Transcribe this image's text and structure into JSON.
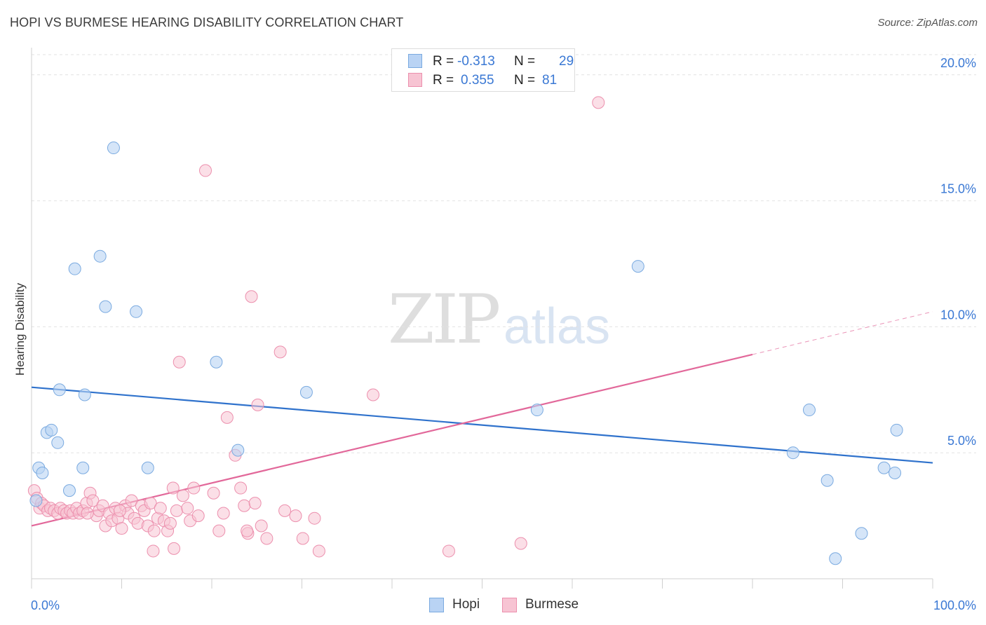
{
  "header": {
    "title": "HOPI VS BURMESE HEARING DISABILITY CORRELATION CHART",
    "source": "Source: ZipAtlas.com"
  },
  "legend": {
    "hopi": {
      "r_label": "R = ",
      "r_value": "-0.313",
      "n_label": "N = ",
      "n_value": "29"
    },
    "burmese": {
      "r_label": "R = ",
      "r_value": "0.355",
      "n_label": "N = ",
      "n_value": "81"
    }
  },
  "watermark": {
    "zip": "ZIP",
    "atlas": "atlas"
  },
  "colors": {
    "hopi_fill": "#b9d3f4",
    "hopi_stroke": "#7aaae0",
    "hopi_line": "#2f72cc",
    "burmese_fill": "#f7c4d3",
    "burmese_stroke": "#ec8fad",
    "burmese_line": "#e2689a",
    "tick_label": "#3a78d4",
    "grid": "#e2e2e2"
  },
  "chart_data": {
    "type": "scatter",
    "title": "HOPI VS BURMESE HEARING DISABILITY CORRELATION CHART",
    "xlabel": "",
    "ylabel": "Hearing Disability",
    "xlim": [
      0,
      100
    ],
    "ylim": [
      0,
      20.8
    ],
    "x_tick_labels": [
      "0.0%",
      "100.0%"
    ],
    "y_ticks": [
      5,
      10,
      15,
      20
    ],
    "y_tick_labels": [
      "5.0%",
      "10.0%",
      "15.0%",
      "20.0%"
    ],
    "legend_position": "top-center",
    "series": [
      {
        "name": "Hopi",
        "points": [
          [
            0.5,
            3.1
          ],
          [
            0.8,
            4.4
          ],
          [
            1.2,
            4.2
          ],
          [
            1.7,
            5.8
          ],
          [
            2.2,
            5.9
          ],
          [
            2.9,
            5.4
          ],
          [
            3.1,
            7.5
          ],
          [
            4.2,
            3.5
          ],
          [
            4.8,
            12.3
          ],
          [
            5.7,
            4.4
          ],
          [
            5.9,
            7.3
          ],
          [
            7.6,
            12.8
          ],
          [
            8.2,
            10.8
          ],
          [
            9.1,
            17.1
          ],
          [
            11.6,
            10.6
          ],
          [
            12.9,
            4.4
          ],
          [
            20.5,
            8.6
          ],
          [
            22.9,
            5.1
          ],
          [
            30.5,
            7.4
          ],
          [
            56.1,
            6.7
          ],
          [
            67.3,
            12.4
          ],
          [
            84.5,
            5.0
          ],
          [
            86.3,
            6.7
          ],
          [
            88.3,
            3.9
          ],
          [
            89.2,
            0.8
          ],
          [
            92.1,
            1.8
          ],
          [
            94.6,
            4.4
          ],
          [
            95.8,
            4.2
          ],
          [
            96.0,
            5.9
          ]
        ],
        "trend": {
          "x": [
            0,
            100
          ],
          "y": [
            7.6,
            4.6
          ]
        }
      },
      {
        "name": "Burmese",
        "points": [
          [
            0.3,
            3.5
          ],
          [
            0.6,
            3.2
          ],
          [
            0.9,
            2.8
          ],
          [
            1.1,
            3.0
          ],
          [
            1.4,
            2.9
          ],
          [
            1.8,
            2.7
          ],
          [
            2.1,
            2.8
          ],
          [
            2.5,
            2.7
          ],
          [
            2.9,
            2.6
          ],
          [
            3.2,
            2.8
          ],
          [
            3.6,
            2.7
          ],
          [
            3.9,
            2.6
          ],
          [
            4.3,
            2.7
          ],
          [
            4.6,
            2.6
          ],
          [
            5.0,
            2.8
          ],
          [
            5.3,
            2.6
          ],
          [
            5.7,
            2.7
          ],
          [
            6.1,
            3.0
          ],
          [
            6.5,
            3.4
          ],
          [
            6.8,
            3.1
          ],
          [
            7.2,
            2.5
          ],
          [
            7.5,
            2.7
          ],
          [
            7.9,
            2.9
          ],
          [
            8.2,
            2.1
          ],
          [
            8.6,
            2.6
          ],
          [
            8.9,
            2.3
          ],
          [
            9.3,
            2.8
          ],
          [
            9.6,
            2.4
          ],
          [
            10.0,
            2.0
          ],
          [
            10.4,
            2.9
          ],
          [
            10.7,
            2.6
          ],
          [
            11.1,
            3.1
          ],
          [
            11.4,
            2.4
          ],
          [
            11.8,
            2.2
          ],
          [
            12.2,
            2.9
          ],
          [
            12.5,
            2.7
          ],
          [
            12.9,
            2.1
          ],
          [
            13.2,
            3.0
          ],
          [
            13.6,
            1.9
          ],
          [
            14.0,
            2.4
          ],
          [
            14.3,
            2.8
          ],
          [
            14.7,
            2.3
          ],
          [
            15.1,
            1.9
          ],
          [
            15.4,
            2.2
          ],
          [
            15.7,
            3.6
          ],
          [
            16.1,
            2.7
          ],
          [
            16.4,
            8.6
          ],
          [
            16.8,
            3.3
          ],
          [
            17.3,
            2.8
          ],
          [
            17.6,
            2.3
          ],
          [
            18.0,
            3.6
          ],
          [
            18.5,
            2.5
          ],
          [
            19.3,
            16.2
          ],
          [
            20.2,
            3.4
          ],
          [
            20.8,
            1.9
          ],
          [
            21.3,
            2.6
          ],
          [
            21.7,
            6.4
          ],
          [
            22.6,
            4.9
          ],
          [
            23.2,
            3.6
          ],
          [
            23.6,
            2.9
          ],
          [
            24.0,
            1.8
          ],
          [
            24.4,
            11.2
          ],
          [
            24.8,
            3.0
          ],
          [
            25.1,
            6.9
          ],
          [
            25.5,
            2.1
          ],
          [
            26.1,
            1.6
          ],
          [
            27.6,
            9.0
          ],
          [
            28.1,
            2.7
          ],
          [
            29.3,
            2.5
          ],
          [
            30.1,
            1.6
          ],
          [
            31.4,
            2.4
          ],
          [
            31.9,
            1.1
          ],
          [
            37.9,
            7.3
          ],
          [
            46.3,
            1.1
          ],
          [
            54.3,
            1.4
          ],
          [
            62.9,
            18.9
          ],
          [
            23.9,
            1.9
          ],
          [
            13.5,
            1.1
          ],
          [
            15.8,
            1.2
          ],
          [
            9.8,
            2.7
          ],
          [
            6.2,
            2.6
          ]
        ],
        "trend": {
          "x": [
            0,
            100
          ],
          "y": [
            2.1,
            10.6
          ],
          "solid_until": 80
        }
      }
    ]
  },
  "bottom_legend": {
    "hopi": "Hopi",
    "burmese": "Burmese"
  }
}
